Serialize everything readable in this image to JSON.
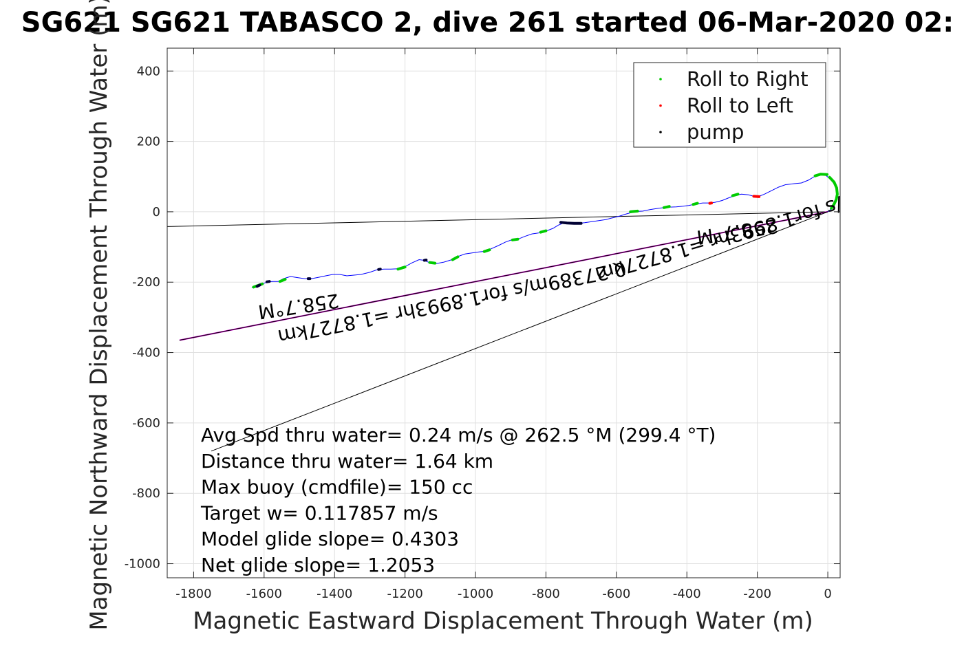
{
  "chart_data": {
    "type": "scatter",
    "title": "SG621 SG621 TABASCO 2, dive 261 started 06-Mar-2020 02:",
    "xlabel": "Magnetic Eastward Displacement Through Water (m)",
    "ylabel": "Magnetic Northward Displacement Through Water (m)",
    "xlim": [
      -1875,
      35
    ],
    "ylim": [
      -1040,
      465
    ],
    "xticks": [
      -1800,
      -1600,
      -1400,
      -1200,
      -1000,
      -800,
      -600,
      -400,
      -200,
      0
    ],
    "yticks": [
      400,
      200,
      0,
      -200,
      -400,
      -600,
      -800,
      -1000
    ],
    "grid": true,
    "legend_position": "top-right",
    "legend": [
      {
        "label": "Roll to Right",
        "color": "#00cc00"
      },
      {
        "label": "Roll to Left",
        "color": "#ff0000"
      },
      {
        "label": "pump",
        "color": "#000000"
      }
    ],
    "track": {
      "color": "#0000ff",
      "points": [
        [
          0,
          0
        ],
        [
          12,
          10
        ],
        [
          20,
          22
        ],
        [
          26,
          35
        ],
        [
          27,
          50
        ],
        [
          24,
          65
        ],
        [
          17,
          80
        ],
        [
          8,
          92
        ],
        [
          -5,
          103
        ],
        [
          -20,
          107
        ],
        [
          -35,
          102
        ],
        [
          -55,
          90
        ],
        [
          -75,
          82
        ],
        [
          -95,
          80
        ],
        [
          -120,
          77
        ],
        [
          -140,
          70
        ],
        [
          -160,
          60
        ],
        [
          -180,
          50
        ],
        [
          -195,
          44
        ],
        [
          -210,
          44
        ],
        [
          -225,
          48
        ],
        [
          -245,
          50
        ],
        [
          -265,
          46
        ],
        [
          -280,
          40
        ],
        [
          -300,
          32
        ],
        [
          -320,
          27
        ],
        [
          -335,
          25
        ],
        [
          -355,
          25
        ],
        [
          -375,
          22
        ],
        [
          -395,
          18
        ],
        [
          -410,
          16
        ],
        [
          -430,
          14
        ],
        [
          -455,
          13
        ],
        [
          -480,
          10
        ],
        [
          -505,
          6
        ],
        [
          -525,
          2
        ],
        [
          -545,
          1
        ],
        [
          -560,
          -3
        ],
        [
          -575,
          -7
        ],
        [
          -590,
          -12
        ],
        [
          -610,
          -17
        ],
        [
          -630,
          -22
        ],
        [
          -650,
          -25
        ],
        [
          -670,
          -28
        ],
        [
          -690,
          -31
        ],
        [
          -710,
          -33
        ],
        [
          -730,
          -33
        ],
        [
          -750,
          -32
        ],
        [
          -765,
          -38
        ],
        [
          -780,
          -47
        ],
        [
          -800,
          -55
        ],
        [
          -820,
          -60
        ],
        [
          -840,
          -63
        ],
        [
          -860,
          -70
        ],
        [
          -880,
          -78
        ],
        [
          -895,
          -79
        ],
        [
          -915,
          -86
        ],
        [
          -935,
          -96
        ],
        [
          -955,
          -105
        ],
        [
          -970,
          -112
        ],
        [
          -990,
          -114
        ],
        [
          -1010,
          -117
        ],
        [
          -1030,
          -120
        ],
        [
          -1050,
          -127
        ],
        [
          -1070,
          -137
        ],
        [
          -1090,
          -143
        ],
        [
          -1110,
          -147
        ],
        [
          -1130,
          -145
        ],
        [
          -1145,
          -138
        ],
        [
          -1160,
          -136
        ],
        [
          -1180,
          -145
        ],
        [
          -1200,
          -156
        ],
        [
          -1220,
          -162
        ],
        [
          -1240,
          -163
        ],
        [
          -1260,
          -163
        ],
        [
          -1280,
          -165
        ],
        [
          -1300,
          -172
        ],
        [
          -1325,
          -178
        ],
        [
          -1345,
          -180
        ],
        [
          -1365,
          -182
        ],
        [
          -1385,
          -178
        ],
        [
          -1405,
          -178
        ],
        [
          -1425,
          -182
        ],
        [
          -1445,
          -186
        ],
        [
          -1465,
          -190
        ],
        [
          -1485,
          -190
        ],
        [
          -1505,
          -187
        ],
        [
          -1525,
          -184
        ],
        [
          -1545,
          -190
        ],
        [
          -1560,
          -198
        ],
        [
          -1575,
          -198
        ],
        [
          -1590,
          -199
        ],
        [
          -1605,
          -205
        ],
        [
          -1615,
          -210
        ],
        [
          -1635,
          -215
        ]
      ]
    },
    "roll_right_segments": [
      [
        [
          -2,
          106
        ],
        [
          -20,
          107
        ],
        [
          -36,
          102
        ]
      ],
      [
        [
          5,
          98
        ],
        [
          18,
          84
        ],
        [
          25,
          68
        ],
        [
          27,
          50
        ],
        [
          24,
          35
        ],
        [
          18,
          22
        ],
        [
          10,
          10
        ]
      ],
      [
        [
          -255,
          50
        ],
        [
          -270,
          46
        ]
      ],
      [
        [
          -370,
          24
        ],
        [
          -382,
          21
        ]
      ],
      [
        [
          -450,
          15
        ],
        [
          -465,
          12
        ]
      ],
      [
        [
          -540,
          2
        ],
        [
          -560,
          0
        ]
      ],
      [
        [
          -800,
          -54
        ],
        [
          -815,
          -58
        ]
      ],
      [
        [
          -880,
          -78
        ],
        [
          -895,
          -80
        ]
      ],
      [
        [
          -960,
          -108
        ],
        [
          -975,
          -113
        ]
      ],
      [
        [
          -1050,
          -128
        ],
        [
          -1065,
          -136
        ]
      ],
      [
        [
          -1115,
          -146
        ],
        [
          -1130,
          -144
        ]
      ],
      [
        [
          -1200,
          -157
        ],
        [
          -1220,
          -163
        ]
      ],
      [
        [
          -1540,
          -192
        ],
        [
          -1555,
          -198
        ]
      ],
      [
        [
          -1605,
          -205
        ],
        [
          -1630,
          -214
        ]
      ]
    ],
    "roll_left_segments": [
      [
        [
          -195,
          43
        ],
        [
          -210,
          44
        ]
      ],
      [
        [
          -330,
          25
        ],
        [
          -335,
          24
        ]
      ]
    ],
    "pump_segments": [
      [
        [
          -700,
          -33
        ],
        [
          -720,
          -33
        ],
        [
          -740,
          -32
        ],
        [
          -758,
          -30
        ]
      ],
      [
        [
          -1140,
          -137
        ],
        [
          -1145,
          -138
        ]
      ],
      [
        [
          -1270,
          -163
        ],
        [
          -1275,
          -164
        ]
      ],
      [
        [
          -1470,
          -190
        ],
        [
          -1475,
          -190
        ]
      ],
      [
        [
          -1585,
          -198
        ],
        [
          -1592,
          -199
        ]
      ],
      [
        [
          -1612,
          -208
        ],
        [
          -1620,
          -212
        ]
      ]
    ],
    "lines": [
      {
        "name": "current-heading-line",
        "color": "#000000",
        "from": [
          0,
          0
        ],
        "to": [
          -1875,
          -42
        ]
      },
      {
        "name": "magenta-heading-line",
        "color": "#cc00cc",
        "from": [
          0,
          0
        ],
        "to": [
          -1840,
          -365
        ]
      },
      {
        "name": "black-heading-line",
        "color": "#000000",
        "from": [
          0,
          0
        ],
        "to": [
          -1840,
          -365
        ]
      },
      {
        "name": "dive-heading-line",
        "color": "#000000",
        "from": [
          0,
          0
        ],
        "to": [
          -1750,
          -680
        ]
      }
    ],
    "rotated_labels": [
      {
        "text": "258.7°M",
        "x": -1505,
        "y": -250,
        "angle": 171.6
      },
      {
        "text": "0.27389m/s for1.8993hr =1.8727km",
        "x": -1070,
        "y": -240,
        "angle": 168.8
      },
      {
        "text": "258.7°M",
        "x": -260,
        "y": -38,
        "angle": 171.6
      },
      {
        "text": "0.27389m/s for1.8993hr =1.8727km",
        "x": -180,
        "y": -22,
        "angle": 163.9
      }
    ],
    "annotations": [
      "Avg Spd thru water=  0.24 m/s @ 262.5 °M (299.4 °T)",
      "Distance thru water=  1.64 km",
      "Max buoy (cmdfile)= 150 cc",
      "Target w= 0.117857 m/s",
      "Model glide slope= 0.4303",
      "Net glide slope= 1.2053"
    ]
  }
}
